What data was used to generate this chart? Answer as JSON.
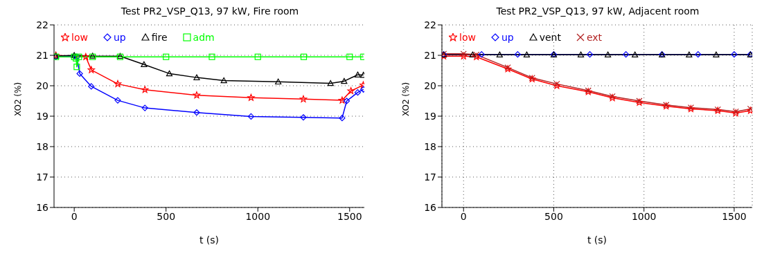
{
  "chart_data": [
    {
      "type": "line",
      "title": "Test PR2_VSP_Q13, 97 kW, Fire room",
      "xlabel": "t (s)",
      "ylabel": "XO2 (%)",
      "xlim": [
        -110,
        1580
      ],
      "xticks": [
        0,
        500,
        1000,
        1500
      ],
      "ylim": [
        16,
        22
      ],
      "yticks": [
        16,
        17,
        18,
        19,
        20,
        21,
        22
      ],
      "grid": "y",
      "legend": "top left",
      "series": [
        {
          "name": "low",
          "color": "#ff0000",
          "marker": "star",
          "x": [
            -100,
            63,
            93,
            237,
            385,
            667,
            963,
            1248,
            1459,
            1507,
            1574
          ],
          "values": [
            21.0,
            20.95,
            20.52,
            20.06,
            19.87,
            19.69,
            19.61,
            19.56,
            19.52,
            19.83,
            20.02
          ]
        },
        {
          "name": "up",
          "color": "#0000ff",
          "marker": "diamond",
          "x": [
            -100,
            0,
            14,
            30,
            93,
            237,
            385,
            667,
            963,
            1248,
            1459,
            1484,
            1544,
            1575
          ],
          "values": [
            20.95,
            20.98,
            20.95,
            20.4,
            19.98,
            19.52,
            19.27,
            19.12,
            18.99,
            18.96,
            18.94,
            19.5,
            19.78,
            19.88
          ]
        },
        {
          "name": "fire",
          "color": "#000000",
          "marker": "triangle",
          "x": [
            -100,
            0,
            100,
            250,
            380,
            518,
            667,
            815,
            1111,
            1396,
            1470,
            1544,
            1575
          ],
          "values": [
            20.98,
            21.0,
            20.98,
            20.97,
            20.7,
            20.4,
            20.27,
            20.17,
            20.13,
            20.08,
            20.15,
            20.36,
            20.35
          ]
        },
        {
          "name": "adm",
          "color": "#00ff00",
          "marker": "square",
          "x": [
            -100,
            0,
            10,
            14,
            25,
            100,
            250,
            500,
            750,
            1000,
            1250,
            1500,
            1575
          ],
          "values": [
            20.95,
            20.95,
            20.9,
            20.62,
            20.95,
            20.95,
            20.95,
            20.95,
            20.95,
            20.95,
            20.95,
            20.95,
            20.95
          ]
        }
      ]
    },
    {
      "type": "line",
      "title": "Test PR2_VSP_Q13, 97 kW, Adjacent room",
      "xlabel": "t (s)",
      "ylabel": "XO2 (%)",
      "xlim": [
        -120,
        1600
      ],
      "xticks": [
        0,
        500,
        1000,
        1500
      ],
      "ylim": [
        16,
        22
      ],
      "yticks": [
        16,
        17,
        18,
        19,
        20,
        21,
        22
      ],
      "grid": true,
      "legend": "top left",
      "series": [
        {
          "name": "low",
          "color": "#ff0000",
          "marker": "star",
          "x": [
            -110,
            0,
            71,
            245,
            380,
            517,
            691,
            825,
            974,
            1123,
            1260,
            1409,
            1509,
            1590
          ],
          "values": [
            20.97,
            20.97,
            20.95,
            20.55,
            20.22,
            20.0,
            19.8,
            19.6,
            19.45,
            19.33,
            19.24,
            19.18,
            19.1,
            19.18
          ]
        },
        {
          "name": "up",
          "color": "#0000ff",
          "marker": "diamond",
          "x": [
            -110,
            100,
            300,
            500,
            700,
            900,
            1100,
            1300,
            1500,
            1590
          ],
          "values": [
            21.03,
            21.03,
            21.03,
            21.03,
            21.03,
            21.03,
            21.03,
            21.03,
            21.03,
            21.03
          ]
        },
        {
          "name": "vent",
          "color": "#000000",
          "marker": "triangle",
          "x": [
            -110,
            50,
            200,
            350,
            500,
            650,
            800,
            950,
            1100,
            1250,
            1400,
            1590
          ],
          "values": [
            21.02,
            21.02,
            21.02,
            21.02,
            21.02,
            21.02,
            21.02,
            21.02,
            21.02,
            21.02,
            21.02,
            21.02
          ]
        },
        {
          "name": "ext",
          "color": "#b22222",
          "marker": "cross",
          "x": [
            -110,
            0,
            71,
            245,
            380,
            517,
            691,
            825,
            974,
            1123,
            1260,
            1409,
            1509,
            1590
          ],
          "values": [
            21.05,
            21.05,
            21.02,
            20.6,
            20.26,
            20.06,
            19.84,
            19.65,
            19.5,
            19.37,
            19.28,
            19.22,
            19.15,
            19.24
          ]
        }
      ]
    }
  ]
}
